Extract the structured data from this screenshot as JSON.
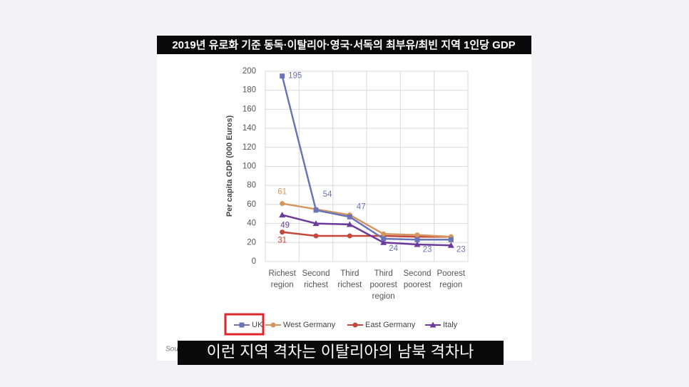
{
  "header": {
    "title": "2019년 유로화 기준 동독·이탈리아·영국·서독의 최부유/최빈 지역 1인당 GDP"
  },
  "chart_data": {
    "type": "line",
    "y_label": "Per capita GDP (000 Euros)",
    "categories": [
      [
        "Richest",
        "region"
      ],
      [
        "Second",
        "richest"
      ],
      [
        "Third",
        "richest"
      ],
      [
        "Third",
        "poorest",
        "region"
      ],
      [
        "Second",
        "poorest"
      ],
      [
        "Poorest",
        "region"
      ]
    ],
    "ylim": [
      0,
      200
    ],
    "yticks": [
      0,
      20,
      40,
      60,
      80,
      100,
      120,
      140,
      160,
      180,
      200
    ],
    "grid": true,
    "series": [
      {
        "name": "UK",
        "color": "#6a74b6",
        "marker": "square",
        "values": [
          195,
          54,
          47,
          24,
          23,
          23
        ],
        "labeled": [
          0,
          1,
          2,
          3,
          4,
          5
        ]
      },
      {
        "name": "West Germany",
        "color": "#d39660",
        "marker": "circle",
        "values": [
          61,
          55,
          49,
          29,
          28,
          26
        ],
        "labeled": [
          0
        ]
      },
      {
        "name": "East Germany",
        "color": "#c6473b",
        "marker": "circle",
        "values": [
          31,
          27,
          27,
          27,
          26,
          26
        ],
        "labeled": [
          0
        ]
      },
      {
        "name": "Italy",
        "color": "#6b3a9b",
        "marker": "triangle",
        "values": [
          49,
          40,
          39,
          20,
          18,
          17
        ],
        "labeled": [
          0
        ]
      }
    ],
    "source_partial": "Sou"
  },
  "caption": {
    "text": "이런 지역 격차는 이탈리아의 남북 격차나"
  }
}
